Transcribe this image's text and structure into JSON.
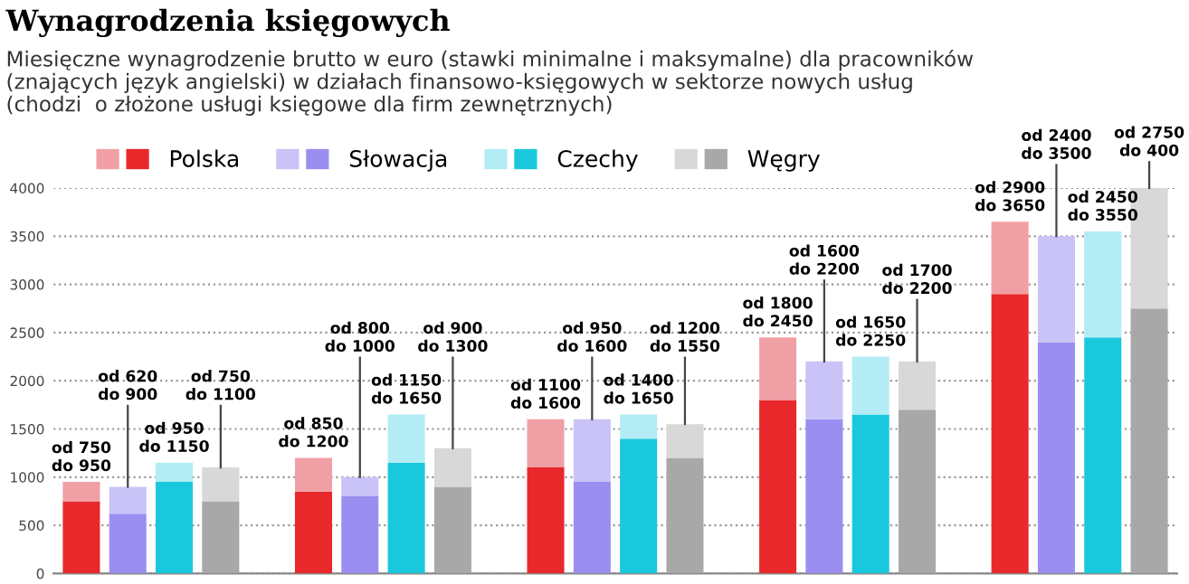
{
  "chart_data": {
    "type": "bar",
    "title": "Wynagrodzenia księgowych",
    "subtitle": "Miesięczne wynagrodzenie brutto w euro (stawki minimalne i maksymalne) dla pracowników\n(znających język angielski) w działach finansowo-księgowych w sektorze nowych usług\n(chodzi  o złożone usługi księgowe dla firm zewnętrznych)",
    "categories": [
      null,
      null,
      null,
      null,
      null,
      null,
      null,
      null,
      null,
      null,
      null,
      null,
      null,
      null,
      null,
      null,
      null,
      null,
      null,
      null,
      null,
      null,
      null,
      null
    ],
    "stacked": true,
    "series": [
      {
        "name": "Polska",
        "color": "#e8282b",
        "values": [
          750,
          null,
          null,
          null,
          null,
          850,
          null,
          null,
          null,
          null,
          1100,
          null,
          null,
          null,
          null,
          1800,
          null,
          null,
          null,
          null,
          2900,
          null,
          null,
          null
        ]
      },
      {
        "color": "#f0a0a5",
        "values": [
          200,
          null,
          null,
          null,
          null,
          350,
          null,
          null,
          null,
          null,
          500,
          null,
          null,
          null,
          null,
          650,
          null,
          null,
          null,
          null,
          750,
          null,
          null,
          null
        ],
        "value_labels": [
          "od 750\ndo 950",
          null,
          null,
          null,
          null,
          "od 850\ndo 1200",
          null,
          null,
          null,
          null,
          "od 1100\ndo 1600",
          null,
          null,
          null,
          null,
          "od 1800\ndo 2450",
          null,
          null,
          null,
          null,
          "od 2900\ndo 3650",
          null,
          null,
          null
        ]
      },
      {
        "name": "Słowacja",
        "color": "#9a8ff0",
        "values": [
          null,
          620,
          null,
          null,
          null,
          null,
          800,
          null,
          null,
          null,
          null,
          950,
          null,
          null,
          null,
          null,
          1600,
          null,
          null,
          null,
          null,
          2400,
          null,
          null
        ]
      },
      {
        "color": "#c9c3f7",
        "values": [
          null,
          280,
          null,
          null,
          null,
          null,
          200,
          null,
          null,
          null,
          null,
          650,
          null,
          null,
          null,
          null,
          600,
          null,
          null,
          null,
          null,
          1100,
          null,
          null
        ],
        "value_labels": [
          null,
          "od 620\ndo 900",
          null,
          null,
          null,
          null,
          "od 800\ndo 1000",
          null,
          null,
          null,
          null,
          "od 950\ndo 1600",
          null,
          null,
          null,
          null,
          "od 1600\ndo 2200",
          null,
          null,
          null,
          null,
          "od 2400\ndo 3500",
          null,
          null
        ]
      },
      {
        "name": "Czechy",
        "color": "#1ac8dd",
        "values": [
          null,
          null,
          950,
          null,
          null,
          null,
          null,
          1150,
          null,
          null,
          null,
          null,
          1400,
          null,
          null,
          null,
          null,
          1650,
          null,
          null,
          null,
          null,
          2450,
          null
        ]
      },
      {
        "color": "#b3ecf5",
        "values": [
          null,
          null,
          200,
          null,
          null,
          null,
          null,
          500,
          null,
          null,
          null,
          null,
          250,
          null,
          null,
          null,
          null,
          600,
          null,
          null,
          null,
          null,
          1100,
          null
        ],
        "value_labels": [
          null,
          null,
          "od 950\ndo 1150",
          null,
          null,
          null,
          null,
          "od 1150\ndo 1650",
          null,
          null,
          null,
          null,
          "od 1400\ndo 1650",
          null,
          null,
          null,
          null,
          "od 1650\ndo 2250",
          null,
          null,
          null,
          null,
          "od 2450\ndo 3550",
          null
        ]
      },
      {
        "name": "Węgry",
        "color": "#a8a8a8",
        "values": [
          null,
          null,
          null,
          750,
          null,
          null,
          null,
          null,
          900,
          null,
          null,
          null,
          null,
          1200,
          null,
          null,
          null,
          null,
          1700,
          null,
          null,
          null,
          null,
          2750
        ]
      },
      {
        "color": "#d8d8d8",
        "values": [
          null,
          null,
          null,
          350,
          null,
          null,
          null,
          null,
          400,
          null,
          null,
          null,
          null,
          350,
          null,
          null,
          null,
          null,
          500,
          null,
          null,
          null,
          null,
          1250
        ],
        "value_labels": [
          null,
          null,
          null,
          "od 750\ndo 1100",
          null,
          null,
          null,
          null,
          "od 900\ndo 1300",
          null,
          null,
          null,
          null,
          "od 1200\ndo 1550",
          null,
          null,
          null,
          null,
          "od 1700\ndo 2200",
          null,
          null,
          null,
          null,
          "od 2750\ndo 400"
        ]
      }
    ],
    "ylim": [
      0,
      4000
    ],
    "yticks": [
      0,
      500,
      1000,
      1500,
      2000,
      2500,
      3000,
      3500,
      4000
    ],
    "grid": "y",
    "legend": "top left",
    "tick_labels": "y"
  }
}
